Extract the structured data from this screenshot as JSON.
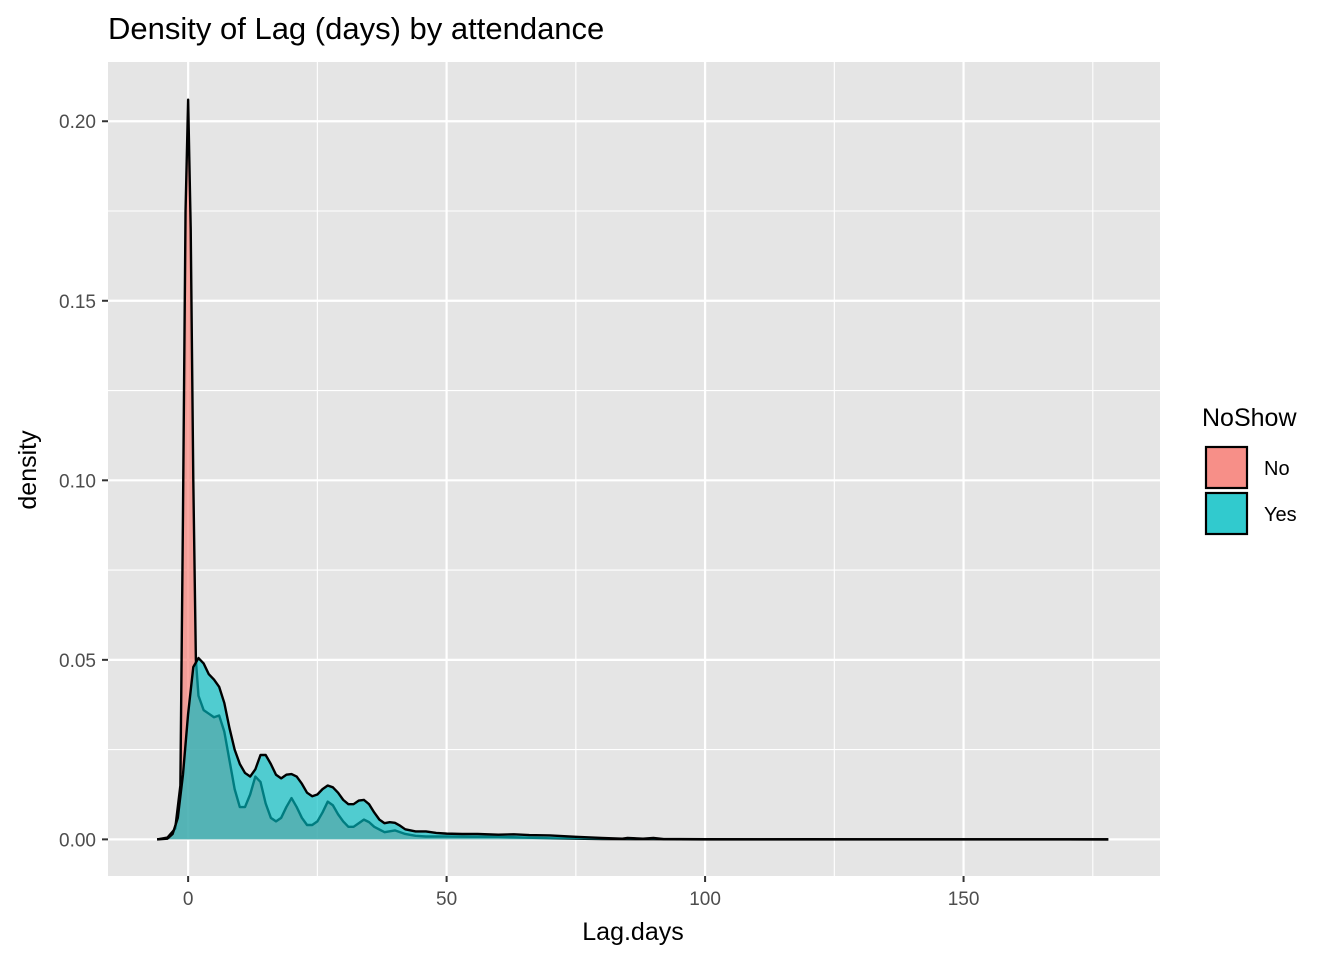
{
  "chart_data": {
    "type": "area",
    "subtype": "density",
    "title": "Density of Lag (days) by attendance",
    "xlabel": "Lag.days",
    "ylabel": "density",
    "xlim": [
      -15.5,
      188
    ],
    "ylim": [
      -0.0102,
      0.2165
    ],
    "x_ticks": [
      0,
      50,
      100,
      150
    ],
    "x_tick_labels": [
      "0",
      "50",
      "100",
      "150"
    ],
    "y_ticks": [
      0,
      0.05,
      0.1,
      0.15,
      0.2
    ],
    "y_tick_labels": [
      "0.00",
      "0.05",
      "0.10",
      "0.15",
      "0.20"
    ],
    "grid": true,
    "legend": {
      "title": "NoShow",
      "position": "right",
      "entries": [
        {
          "label": "No",
          "color": "#F8766D"
        },
        {
          "label": "Yes",
          "color": "#00BFC4"
        }
      ]
    },
    "series": [
      {
        "name": "No",
        "color": "#F8766D",
        "x": [
          -6,
          -4,
          -2.5,
          -1.5,
          -1,
          -0.5,
          0,
          0.5,
          1,
          1.5,
          2,
          3,
          4,
          5,
          6,
          7,
          8,
          9,
          10,
          11,
          12,
          13,
          14,
          15,
          16,
          17,
          18,
          19,
          20,
          21,
          22,
          23,
          24,
          25,
          26,
          27,
          28,
          29,
          30,
          31,
          32,
          33,
          34,
          35,
          36,
          38,
          40,
          42,
          44,
          46,
          50,
          55,
          60,
          65,
          70,
          75,
          80,
          90,
          100,
          120,
          150,
          178
        ],
        "y": [
          0,
          0.0005,
          0.003,
          0.015,
          0.09,
          0.175,
          0.206,
          0.17,
          0.1,
          0.05,
          0.04,
          0.036,
          0.035,
          0.034,
          0.0345,
          0.03,
          0.022,
          0.014,
          0.009,
          0.009,
          0.0125,
          0.0175,
          0.016,
          0.01,
          0.006,
          0.005,
          0.006,
          0.009,
          0.0115,
          0.009,
          0.006,
          0.004,
          0.004,
          0.005,
          0.0075,
          0.0105,
          0.0095,
          0.007,
          0.005,
          0.0035,
          0.0035,
          0.0045,
          0.0055,
          0.0048,
          0.0035,
          0.002,
          0.0025,
          0.0015,
          0.001,
          0.0008,
          0.0008,
          0.0007,
          0.0007,
          0.0005,
          0.0003,
          0.0002,
          0.0001,
          5e-05,
          0,
          0,
          0,
          0
        ]
      },
      {
        "name": "Yes",
        "color": "#00BFC4",
        "x": [
          -6,
          -4,
          -3,
          -2,
          -1,
          0,
          1,
          2,
          3,
          4,
          5,
          6,
          7,
          8,
          9,
          10,
          11,
          12,
          13,
          14,
          15,
          16,
          17,
          18,
          19,
          20,
          21,
          22,
          23,
          24,
          25,
          26,
          27,
          28,
          29,
          30,
          31,
          32,
          33,
          34,
          35,
          36,
          37,
          38,
          39,
          40,
          41,
          42,
          44,
          46,
          48,
          50,
          53,
          56,
          60,
          63,
          66,
          70,
          75,
          80,
          84,
          85,
          88,
          90,
          92,
          95,
          100,
          110,
          120,
          130,
          140,
          150,
          160,
          170,
          178
        ],
        "y": [
          0,
          0.0002,
          0.0015,
          0.006,
          0.018,
          0.035,
          0.048,
          0.0505,
          0.049,
          0.046,
          0.0445,
          0.0425,
          0.038,
          0.031,
          0.025,
          0.021,
          0.0185,
          0.0175,
          0.0195,
          0.0235,
          0.0235,
          0.021,
          0.018,
          0.017,
          0.018,
          0.0182,
          0.0175,
          0.0155,
          0.013,
          0.012,
          0.0125,
          0.014,
          0.015,
          0.0145,
          0.013,
          0.011,
          0.0098,
          0.0098,
          0.0108,
          0.011,
          0.0098,
          0.0075,
          0.0055,
          0.0045,
          0.0048,
          0.0046,
          0.0038,
          0.0028,
          0.0022,
          0.0022,
          0.0018,
          0.0016,
          0.0015,
          0.0015,
          0.0013,
          0.0014,
          0.0012,
          0.0011,
          0.0007,
          0.0004,
          0.0002,
          0.0004,
          0.0002,
          0.0004,
          0.0001,
          0.0001,
          5e-05,
          3e-05,
          4e-05,
          2e-05,
          2e-05,
          2e-05,
          1e-05,
          1e-05,
          0
        ]
      }
    ]
  },
  "colors": {
    "panel_background": "#E5E5E5",
    "grid_major": "#FFFFFF",
    "outline": "#000000"
  }
}
